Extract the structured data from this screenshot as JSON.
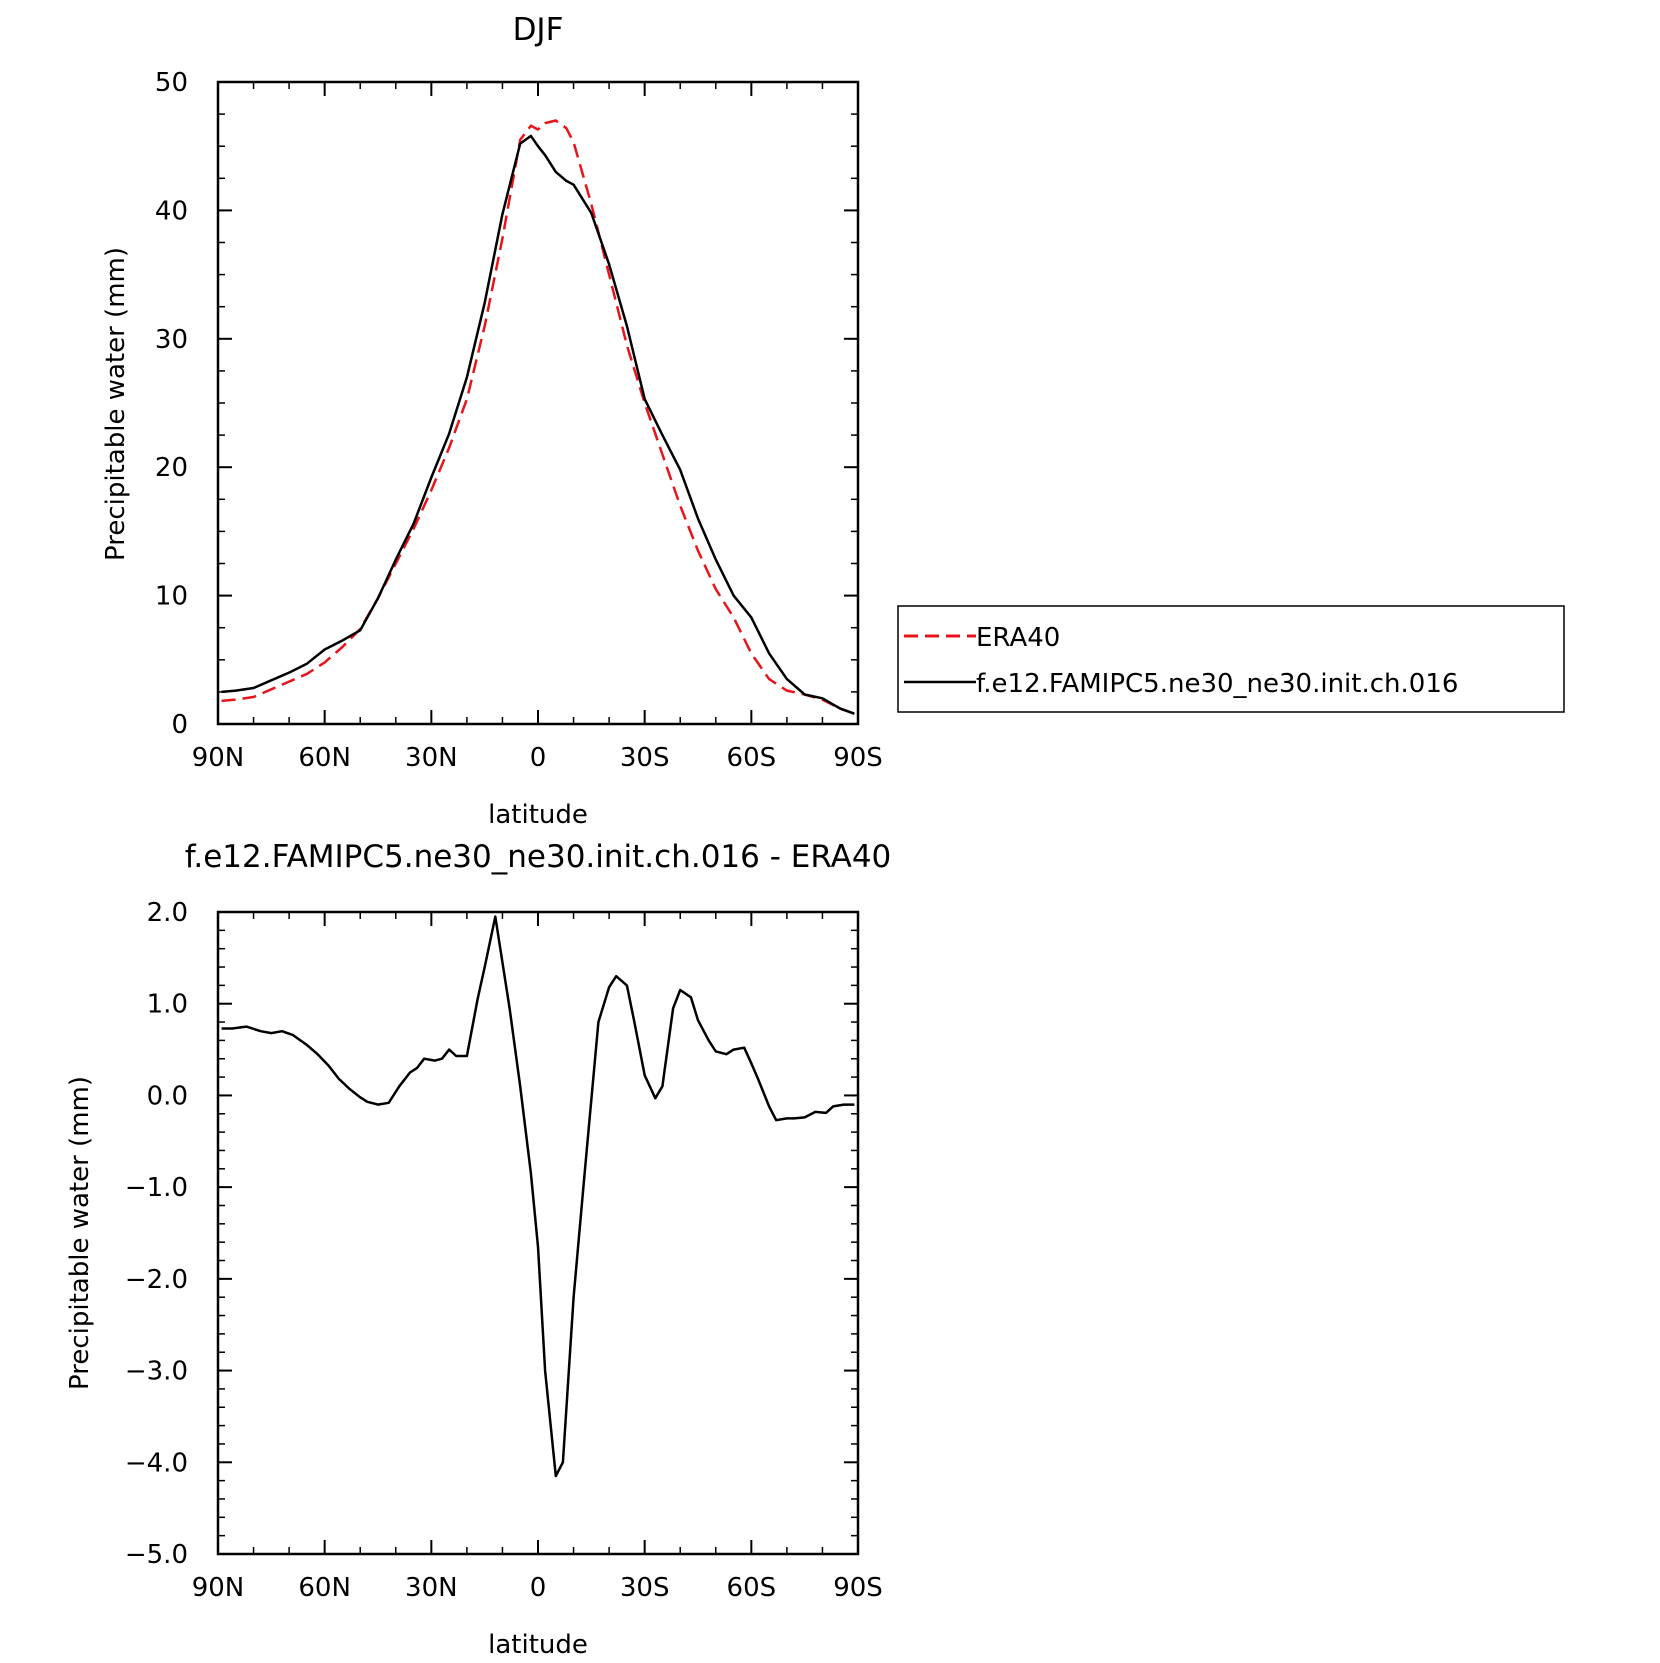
{
  "chart_data": [
    {
      "type": "line",
      "title": "DJF",
      "xlabel": "latitude",
      "ylabel": "Precipitable water (mm)",
      "xlim": [
        90,
        -90
      ],
      "ylim": [
        0,
        50
      ],
      "xticks": [
        90,
        60,
        30,
        0,
        -30,
        -60,
        -90
      ],
      "xtick_labels": [
        "90N",
        "60N",
        "30N",
        "0",
        "30S",
        "60S",
        "90S"
      ],
      "yticks": [
        0,
        10,
        20,
        30,
        40,
        50
      ],
      "ytick_labels": [
        "0",
        "10",
        "20",
        "30",
        "40",
        "50"
      ],
      "legend": "right",
      "grid": false,
      "series": [
        {
          "name": "ERA40",
          "color": "#e8141c",
          "style": "dashed",
          "x": [
            89,
            85,
            80,
            75,
            70,
            65,
            60,
            55,
            50,
            45,
            40,
            35,
            30,
            25,
            20,
            15,
            10,
            5,
            2,
            0,
            -2,
            -5,
            -8,
            -10,
            -15,
            -20,
            -25,
            -30,
            -35,
            -40,
            -45,
            -50,
            -55,
            -60,
            -65,
            -70,
            -75,
            -80,
            -85,
            -89
          ],
          "y": [
            1.8,
            1.9,
            2.1,
            2.7,
            3.3,
            3.9,
            4.8,
            6.0,
            7.4,
            9.8,
            12.5,
            15.2,
            18.2,
            21.5,
            25.3,
            31.0,
            37.8,
            45.5,
            46.6,
            46.3,
            46.8,
            47.0,
            46.4,
            45.3,
            40.5,
            35.0,
            29.5,
            25.0,
            21.0,
            17.0,
            13.5,
            10.5,
            8.3,
            5.5,
            3.5,
            2.6,
            2.3,
            1.9,
            1.2,
            0.8
          ]
        },
        {
          "name": "f.e12.FAMIPC5.ne30_ne30.init.ch.016",
          "color": "#000000",
          "style": "solid",
          "x": [
            89,
            85,
            80,
            75,
            70,
            65,
            60,
            55,
            50,
            45,
            40,
            35,
            30,
            25,
            20,
            15,
            10,
            5,
            2,
            0,
            -2,
            -5,
            -8,
            -10,
            -15,
            -20,
            -25,
            -30,
            -35,
            -40,
            -45,
            -50,
            -55,
            -60,
            -65,
            -70,
            -75,
            -80,
            -85,
            -89
          ],
          "y": [
            2.5,
            2.6,
            2.8,
            3.4,
            4.0,
            4.7,
            5.8,
            6.5,
            7.3,
            9.8,
            12.8,
            15.6,
            19.2,
            22.6,
            27.0,
            32.8,
            39.7,
            45.2,
            45.8,
            45.0,
            44.3,
            43.0,
            42.3,
            42.0,
            39.8,
            35.8,
            31.0,
            25.3,
            22.5,
            19.8,
            16.0,
            12.8,
            10.0,
            8.3,
            5.5,
            3.5,
            2.3,
            2.0,
            1.2,
            0.8
          ]
        }
      ]
    },
    {
      "type": "line",
      "title": "f.e12.FAMIPC5.ne30_ne30.init.ch.016 - ERA40",
      "xlabel": "latitude",
      "ylabel": "Precipitable water (mm)",
      "xlim": [
        90,
        -90
      ],
      "ylim": [
        -5.0,
        2.0
      ],
      "xticks": [
        90,
        60,
        30,
        0,
        -30,
        -60,
        -90
      ],
      "xtick_labels": [
        "90N",
        "60N",
        "30N",
        "0",
        "30S",
        "60S",
        "90S"
      ],
      "yticks": [
        -5,
        -4,
        -3,
        -2,
        -1,
        0,
        1,
        2
      ],
      "ytick_labels": [
        "−5.0",
        "−4.0",
        "−3.0",
        "−2.0",
        "−1.0",
        "0.0",
        "1.0",
        "2.0"
      ],
      "grid": false,
      "series": [
        {
          "color": "#000000",
          "style": "solid",
          "x": [
            89,
            86,
            82,
            78,
            75,
            72,
            69,
            65,
            62,
            59,
            56,
            53,
            50,
            48,
            45,
            42,
            39,
            36,
            34,
            32,
            29,
            27,
            25,
            23,
            20,
            17,
            15,
            12,
            8,
            5,
            2,
            0,
            -2,
            -5,
            -7,
            -10,
            -13,
            -17,
            -20,
            -22,
            -25,
            -27,
            -30,
            -33,
            -35,
            -38,
            -40,
            -43,
            -45,
            -48,
            -50,
            -53,
            -55,
            -58,
            -60,
            -62,
            -65,
            -67,
            -70,
            -72,
            -75,
            -78,
            -81,
            -83,
            -86,
            -88,
            -89
          ],
          "y": [
            0.73,
            0.73,
            0.75,
            0.7,
            0.68,
            0.7,
            0.66,
            0.55,
            0.45,
            0.33,
            0.18,
            0.07,
            -0.02,
            -0.07,
            -0.1,
            -0.08,
            0.1,
            0.25,
            0.3,
            0.4,
            0.38,
            0.4,
            0.5,
            0.43,
            0.43,
            1.05,
            1.4,
            1.95,
            0.95,
            0.1,
            -0.85,
            -1.65,
            -3.0,
            -4.15,
            -4.0,
            -2.2,
            -0.9,
            0.8,
            1.18,
            1.3,
            1.2,
            0.82,
            0.22,
            -0.03,
            0.1,
            0.95,
            1.15,
            1.07,
            0.82,
            0.6,
            0.48,
            0.45,
            0.5,
            0.52,
            0.35,
            0.17,
            -0.12,
            -0.27,
            -0.25,
            -0.25,
            -0.24,
            -0.18,
            -0.19,
            -0.12,
            -0.1,
            -0.1,
            -0.1
          ]
        }
      ]
    }
  ]
}
